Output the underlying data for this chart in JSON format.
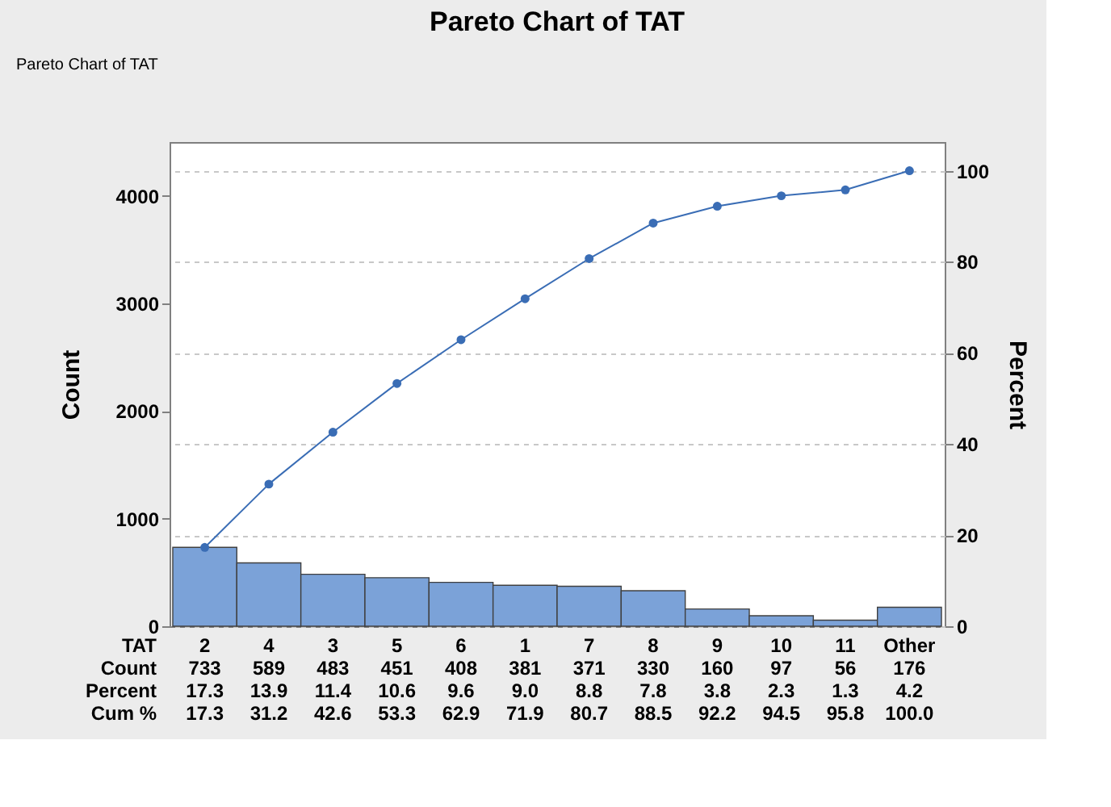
{
  "chart_data": {
    "type": "bar",
    "title": "Pareto Chart of TAT",
    "xlabel": "TAT",
    "ylabel": "Count",
    "y2label": "Percent",
    "annotations": [
      "Pareto Chart of TAT",
      "Percent",
      "Cum %",
      "17.3",
      "13.9",
      "11.4",
      "10.6",
      "9.6",
      "9.0",
      "8.8",
      "7.8",
      "3.8",
      "2.3",
      "1.3",
      "4.2"
    ],
    "categories": [
      "2",
      "4",
      "3",
      "5",
      "6",
      "1",
      "7",
      "8",
      "9",
      "10",
      "11",
      "Other"
    ],
    "series": [
      {
        "name": "Count",
        "color": "#7ba2d8",
        "values": [
          733,
          589,
          483,
          451,
          408,
          381,
          371,
          330,
          160,
          97,
          56,
          176
        ],
        "value_labels": [
          "733",
          "589",
          "483",
          "451",
          "408",
          "381",
          "371",
          "330",
          "160",
          "97",
          "56",
          "176"
        ]
      },
      {
        "type": "line",
        "axis": "y2",
        "color": "#3a6db5",
        "values": [
          17.3,
          31.2,
          42.6,
          53.3,
          62.9,
          71.9,
          80.7,
          88.5,
          92.2,
          94.5,
          95.8,
          100.0
        ],
        "value_labels": [
          "17.3",
          "31.2",
          "42.6",
          "53.3",
          "62.9",
          "71.9",
          "80.7",
          "88.5",
          "92.2",
          "94.5",
          "95.8",
          "100.0"
        ]
      }
    ],
    "ylim": [
      0,
      4500
    ],
    "yticks": [
      0,
      1000,
      2000,
      3000,
      4000
    ],
    "y2lim": [
      0,
      106.3
    ],
    "y2ticks": [
      0,
      20,
      40,
      60,
      80,
      100
    ],
    "grid": "y",
    "marker": "circle",
    "line_style": "solid"
  }
}
